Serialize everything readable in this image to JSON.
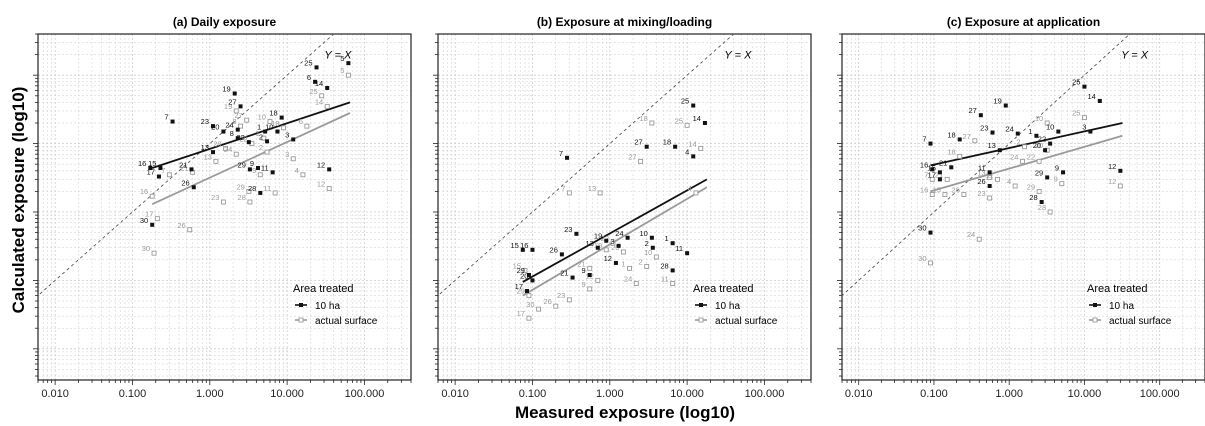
{
  "ylabel": "Calculated exposure (log10)",
  "xlabel": "Measured exposure (log10)",
  "identity_label": "Y = X",
  "legend": {
    "title": "Area treated",
    "items": [
      "10 ha",
      "actual surface"
    ]
  },
  "colors": {
    "ten_ha": "#111111",
    "actual": "#9a9a9a",
    "grid": "#cccccc",
    "identity": "#555555"
  },
  "chart_data": [
    {
      "type": "scatter",
      "title": "(a) Daily exposure",
      "x_scale": "log10",
      "y_scale": "log10",
      "xlim": [
        0.006,
        400
      ],
      "ylim": [
        0.00035,
        40
      ],
      "x_ticks": [
        "0.010",
        "0.100",
        "1.000",
        "10.000",
        "100.000"
      ],
      "grid": true,
      "legend_position": "bottom-right",
      "series": [
        {
          "name": "10 ha",
          "points": [
            {
              "label": "5",
              "x": 62,
              "y": 15
            },
            {
              "label": "25",
              "x": 24,
              "y": 13
            },
            {
              "label": "6",
              "x": 23,
              "y": 8
            },
            {
              "label": "14",
              "x": 33,
              "y": 6.5
            },
            {
              "label": "19",
              "x": 2.1,
              "y": 5.4
            },
            {
              "label": "27",
              "x": 2.5,
              "y": 3.5
            },
            {
              "label": "18",
              "x": 8.5,
              "y": 2.4
            },
            {
              "label": "7",
              "x": 0.33,
              "y": 2.1
            },
            {
              "label": "23",
              "x": 1.1,
              "y": 1.8
            },
            {
              "label": "20",
              "x": 1.5,
              "y": 1.5
            },
            {
              "label": "24",
              "x": 2.3,
              "y": 1.6
            },
            {
              "label": "1",
              "x": 5.2,
              "y": 1.5
            },
            {
              "label": "10",
              "x": 7.5,
              "y": 1.5
            },
            {
              "label": "8",
              "x": 2.3,
              "y": 1.2
            },
            {
              "label": "22",
              "x": 3.2,
              "y": 1.05
            },
            {
              "label": "2",
              "x": 5.5,
              "y": 1.08
            },
            {
              "label": "3",
              "x": 12,
              "y": 1.15
            },
            {
              "label": "13",
              "x": 1.1,
              "y": 0.75
            },
            {
              "label": "16",
              "x": 0.17,
              "y": 0.44
            },
            {
              "label": "15",
              "x": 0.23,
              "y": 0.44
            },
            {
              "label": "21",
              "x": 0.58,
              "y": 0.42
            },
            {
              "label": "17",
              "x": 0.22,
              "y": 0.33
            },
            {
              "label": "26",
              "x": 0.62,
              "y": 0.23
            },
            {
              "label": "29",
              "x": 3.3,
              "y": 0.42
            },
            {
              "label": "9",
              "x": 4.2,
              "y": 0.44
            },
            {
              "label": "28",
              "x": 4.5,
              "y": 0.19
            },
            {
              "label": "11",
              "x": 6.5,
              "y": 0.38
            },
            {
              "label": "12",
              "x": 35,
              "y": 0.42
            },
            {
              "label": "30",
              "x": 0.18,
              "y": 0.065
            }
          ]
        },
        {
          "name": "actual surface",
          "points": [
            {
              "label": "5",
              "x": 62,
              "y": 10
            },
            {
              "label": "25",
              "x": 28,
              "y": 5
            },
            {
              "label": "14",
              "x": 33,
              "y": 3.5
            },
            {
              "label": "19",
              "x": 2.2,
              "y": 3
            },
            {
              "label": "27",
              "x": 3,
              "y": 2.2
            },
            {
              "label": "8",
              "x": 2.5,
              "y": 1.8
            },
            {
              "label": "10",
              "x": 6,
              "y": 2.1
            },
            {
              "label": "18",
              "x": 9,
              "y": 1.7
            },
            {
              "label": "6",
              "x": 18,
              "y": 1.8
            },
            {
              "label": "1",
              "x": 5,
              "y": 1.2
            },
            {
              "label": "22",
              "x": 3.5,
              "y": 1
            },
            {
              "label": "20",
              "x": 1.6,
              "y": 0.85
            },
            {
              "label": "2",
              "x": 5.5,
              "y": 0.75
            },
            {
              "label": "3",
              "x": 12,
              "y": 0.6
            },
            {
              "label": "24",
              "x": 2.2,
              "y": 0.7
            },
            {
              "label": "13",
              "x": 1.2,
              "y": 0.55
            },
            {
              "label": "7",
              "x": 0.3,
              "y": 0.35
            },
            {
              "label": "21",
              "x": 0.6,
              "y": 0.38
            },
            {
              "label": "9",
              "x": 4.5,
              "y": 0.35
            },
            {
              "label": "4",
              "x": 16,
              "y": 0.35
            },
            {
              "label": "29",
              "x": 3.2,
              "y": 0.2
            },
            {
              "label": "23",
              "x": 1.5,
              "y": 0.14
            },
            {
              "label": "11",
              "x": 7,
              "y": 0.19
            },
            {
              "label": "28",
              "x": 3.3,
              "y": 0.14
            },
            {
              "label": "12",
              "x": 35,
              "y": 0.22
            },
            {
              "label": "16",
              "x": 0.18,
              "y": 0.17
            },
            {
              "label": "17",
              "x": 0.21,
              "y": 0.08
            },
            {
              "label": "26",
              "x": 0.55,
              "y": 0.055
            },
            {
              "label": "30",
              "x": 0.19,
              "y": 0.025
            }
          ]
        }
      ],
      "fit_lines": [
        {
          "name": "10 ha",
          "x": [
            0.18,
            65
          ],
          "y": [
            0.44,
            4.0
          ]
        },
        {
          "name": "actual surface",
          "x": [
            0.18,
            65
          ],
          "y": [
            0.13,
            2.8
          ]
        }
      ]
    },
    {
      "type": "scatter",
      "title": "(b) Exposure at mixing/loading",
      "x_scale": "log10",
      "y_scale": "log10",
      "xlim": [
        0.006,
        400
      ],
      "ylim": [
        0.00035,
        40
      ],
      "x_ticks": [
        "0.010",
        "0.100",
        "1.000",
        "10.000",
        "100.000"
      ],
      "grid": true,
      "legend_position": "bottom-right",
      "series": [
        {
          "name": "10 ha",
          "points": [
            {
              "label": "25",
              "x": 12,
              "y": 3.6
            },
            {
              "label": "14",
              "x": 17,
              "y": 2
            },
            {
              "label": "27",
              "x": 3,
              "y": 0.9
            },
            {
              "label": "18",
              "x": 7,
              "y": 0.9
            },
            {
              "label": "4",
              "x": 12,
              "y": 0.65
            },
            {
              "label": "7",
              "x": 0.28,
              "y": 0.62
            },
            {
              "label": "23",
              "x": 0.37,
              "y": 0.048
            },
            {
              "label": "15",
              "x": 0.075,
              "y": 0.028
            },
            {
              "label": "16",
              "x": 0.1,
              "y": 0.028
            },
            {
              "label": "19",
              "x": 0.9,
              "y": 0.038
            },
            {
              "label": "24",
              "x": 1.7,
              "y": 0.042
            },
            {
              "label": "10",
              "x": 3.5,
              "y": 0.042
            },
            {
              "label": "1",
              "x": 6.5,
              "y": 0.035
            },
            {
              "label": "13",
              "x": 0.7,
              "y": 0.03
            },
            {
              "label": "3",
              "x": 1.3,
              "y": 0.032
            },
            {
              "label": "26",
              "x": 0.24,
              "y": 0.024
            },
            {
              "label": "12",
              "x": 1.2,
              "y": 0.018
            },
            {
              "label": "2",
              "x": 3.6,
              "y": 0.03
            },
            {
              "label": "11",
              "x": 10,
              "y": 0.025
            },
            {
              "label": "28",
              "x": 6.5,
              "y": 0.014
            },
            {
              "label": "29",
              "x": 0.09,
              "y": 0.012
            },
            {
              "label": "20",
              "x": 0.1,
              "y": 0.01
            },
            {
              "label": "9",
              "x": 0.55,
              "y": 0.012
            },
            {
              "label": "17",
              "x": 0.085,
              "y": 0.007
            },
            {
              "label": "21",
              "x": 0.33,
              "y": 0.011
            }
          ]
        },
        {
          "name": "actual surface",
          "points": [
            {
              "label": "18",
              "x": 3.5,
              "y": 2
            },
            {
              "label": "25",
              "x": 10,
              "y": 1.85
            },
            {
              "label": "27",
              "x": 2.5,
              "y": 0.55
            },
            {
              "label": "14",
              "x": 15,
              "y": 0.85
            },
            {
              "label": "7",
              "x": 0.3,
              "y": 0.19
            },
            {
              "label": "13",
              "x": 0.75,
              "y": 0.19
            },
            {
              "label": "4",
              "x": 13,
              "y": 0.19
            },
            {
              "label": "22",
              "x": 1.1,
              "y": 0.035
            },
            {
              "label": "19",
              "x": 0.9,
              "y": 0.028
            },
            {
              "label": "20",
              "x": 1.5,
              "y": 0.026
            },
            {
              "label": "21",
              "x": 0.55,
              "y": 0.015
            },
            {
              "label": "1",
              "x": 1.8,
              "y": 0.015
            },
            {
              "label": "10",
              "x": 4,
              "y": 0.022
            },
            {
              "label": "15",
              "x": 0.08,
              "y": 0.014
            },
            {
              "label": "12",
              "x": 0.7,
              "y": 0.01
            },
            {
              "label": "24",
              "x": 2.2,
              "y": 0.009
            },
            {
              "label": "2",
              "x": 3,
              "y": 0.016
            },
            {
              "label": "29",
              "x": 0.09,
              "y": 0.006
            },
            {
              "label": "9",
              "x": 0.55,
              "y": 0.0075
            },
            {
              "label": "23",
              "x": 0.3,
              "y": 0.0052
            },
            {
              "label": "11",
              "x": 6.5,
              "y": 0.009
            },
            {
              "label": "30",
              "x": 0.12,
              "y": 0.0038
            },
            {
              "label": "26",
              "x": 0.2,
              "y": 0.0042
            },
            {
              "label": "17",
              "x": 0.09,
              "y": 0.0028
            }
          ]
        }
      ],
      "fit_lines": [
        {
          "name": "10 ha",
          "x": [
            0.075,
            18
          ],
          "y": [
            0.0095,
            0.3
          ]
        },
        {
          "name": "actual surface",
          "x": [
            0.075,
            18
          ],
          "y": [
            0.006,
            0.23
          ]
        }
      ]
    },
    {
      "type": "scatter",
      "title": "(c) Exposure at application",
      "x_scale": "log10",
      "y_scale": "log10",
      "xlim": [
        0.006,
        400
      ],
      "ylim": [
        0.00035,
        40
      ],
      "x_ticks": [
        "0.010",
        "0.100",
        "1.000",
        "10.000",
        "100.000"
      ],
      "grid": true,
      "legend_position": "bottom-right",
      "series": [
        {
          "name": "10 ha",
          "points": [
            {
              "label": "25",
              "x": 10,
              "y": 6.8
            },
            {
              "label": "14",
              "x": 16,
              "y": 4.2
            },
            {
              "label": "19",
              "x": 0.9,
              "y": 3.6
            },
            {
              "label": "27",
              "x": 0.42,
              "y": 2.6
            },
            {
              "label": "18",
              "x": 0.22,
              "y": 1.15
            },
            {
              "label": "23",
              "x": 0.6,
              "y": 1.45
            },
            {
              "label": "24",
              "x": 1.3,
              "y": 1.4
            },
            {
              "label": "1",
              "x": 2.3,
              "y": 1.3
            },
            {
              "label": "10",
              "x": 4.5,
              "y": 1.5
            },
            {
              "label": "3",
              "x": 12,
              "y": 1.5
            },
            {
              "label": "22",
              "x": 3.5,
              "y": 1
            },
            {
              "label": "7",
              "x": 0.09,
              "y": 1.0
            },
            {
              "label": "13",
              "x": 0.75,
              "y": 0.8
            },
            {
              "label": "20",
              "x": 3,
              "y": 0.8
            },
            {
              "label": "21",
              "x": 0.17,
              "y": 0.45
            },
            {
              "label": "16",
              "x": 0.095,
              "y": 0.42
            },
            {
              "label": "15",
              "x": 0.12,
              "y": 0.38
            },
            {
              "label": "11",
              "x": 0.55,
              "y": 0.38
            },
            {
              "label": "17",
              "x": 0.12,
              "y": 0.3
            },
            {
              "label": "26",
              "x": 0.55,
              "y": 0.24
            },
            {
              "label": "29",
              "x": 3.2,
              "y": 0.32
            },
            {
              "label": "9",
              "x": 5.2,
              "y": 0.38
            },
            {
              "label": "28",
              "x": 2.7,
              "y": 0.14
            },
            {
              "label": "12",
              "x": 30,
              "y": 0.4
            },
            {
              "label": "30",
              "x": 0.09,
              "y": 0.05
            }
          ]
        },
        {
          "name": "actual surface",
          "points": [
            {
              "label": "10",
              "x": 3.2,
              "y": 2
            },
            {
              "label": "25",
              "x": 10,
              "y": 2.4
            },
            {
              "label": "27",
              "x": 0.35,
              "y": 1.1
            },
            {
              "label": "18",
              "x": 0.22,
              "y": 0.65
            },
            {
              "label": "2",
              "x": 1.6,
              "y": 0.9
            },
            {
              "label": "20",
              "x": 3.2,
              "y": 0.8
            },
            {
              "label": "24",
              "x": 1.5,
              "y": 0.55
            },
            {
              "label": "22",
              "x": 2.5,
              "y": 0.55
            },
            {
              "label": "7",
              "x": 0.095,
              "y": 0.3
            },
            {
              "label": "21",
              "x": 0.15,
              "y": 0.3
            },
            {
              "label": "13",
              "x": 0.55,
              "y": 0.32
            },
            {
              "label": "11",
              "x": 0.7,
              "y": 0.3
            },
            {
              "label": "16",
              "x": 0.095,
              "y": 0.18
            },
            {
              "label": "15",
              "x": 0.14,
              "y": 0.18
            },
            {
              "label": "26",
              "x": 0.25,
              "y": 0.18
            },
            {
              "label": "23",
              "x": 0.55,
              "y": 0.16
            },
            {
              "label": "29",
              "x": 2.5,
              "y": 0.2
            },
            {
              "label": "4",
              "x": 1.2,
              "y": 0.24
            },
            {
              "label": "9",
              "x": 5,
              "y": 0.26
            },
            {
              "label": "28",
              "x": 3.5,
              "y": 0.1
            },
            {
              "label": "12",
              "x": 30,
              "y": 0.24
            },
            {
              "label": "30",
              "x": 0.09,
              "y": 0.018
            },
            {
              "label": "24",
              "x": 0.4,
              "y": 0.04
            }
          ]
        }
      ],
      "fit_lines": [
        {
          "name": "10 ha",
          "x": [
            0.09,
            32
          ],
          "y": [
            0.48,
            2.0
          ]
        },
        {
          "name": "actual surface",
          "x": [
            0.09,
            32
          ],
          "y": [
            0.2,
            1.3
          ]
        }
      ]
    }
  ]
}
